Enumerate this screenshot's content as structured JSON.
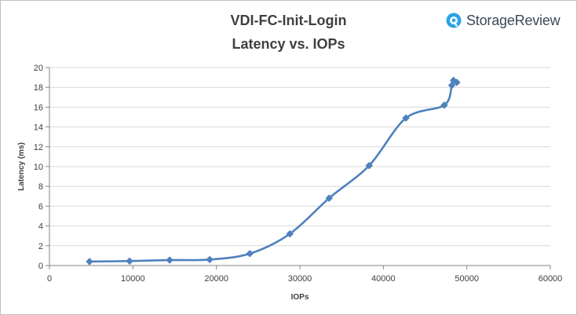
{
  "logo": {
    "text": "StorageReview",
    "icon": "storagereview-logo-icon",
    "color": "#2aa3e6"
  },
  "chart_data": {
    "type": "scatter",
    "title_lines": [
      "VDI-FC-Init-Login",
      "Latency vs. IOPs"
    ],
    "xlabel": "IOPs",
    "ylabel": "Latency (ms)",
    "xlim": [
      0,
      60000
    ],
    "ylim": [
      0,
      20
    ],
    "xticks": [
      0,
      10000,
      20000,
      30000,
      40000,
      50000,
      60000
    ],
    "yticks": [
      0,
      2,
      4,
      6,
      8,
      10,
      12,
      14,
      16,
      18,
      20
    ],
    "grid": "horizontal",
    "line_style": "smoothed",
    "marker": "diamond",
    "series_color": "#4f81bd",
    "series": [
      {
        "x": [
          4800,
          9600,
          14400,
          19200,
          24000,
          28800,
          33500,
          38300,
          42700,
          47300,
          48200,
          48400,
          48800
        ],
        "y": [
          0.4,
          0.45,
          0.55,
          0.6,
          1.2,
          3.2,
          6.8,
          10.1,
          14.9,
          16.2,
          18.2,
          18.7,
          18.5
        ]
      }
    ]
  }
}
